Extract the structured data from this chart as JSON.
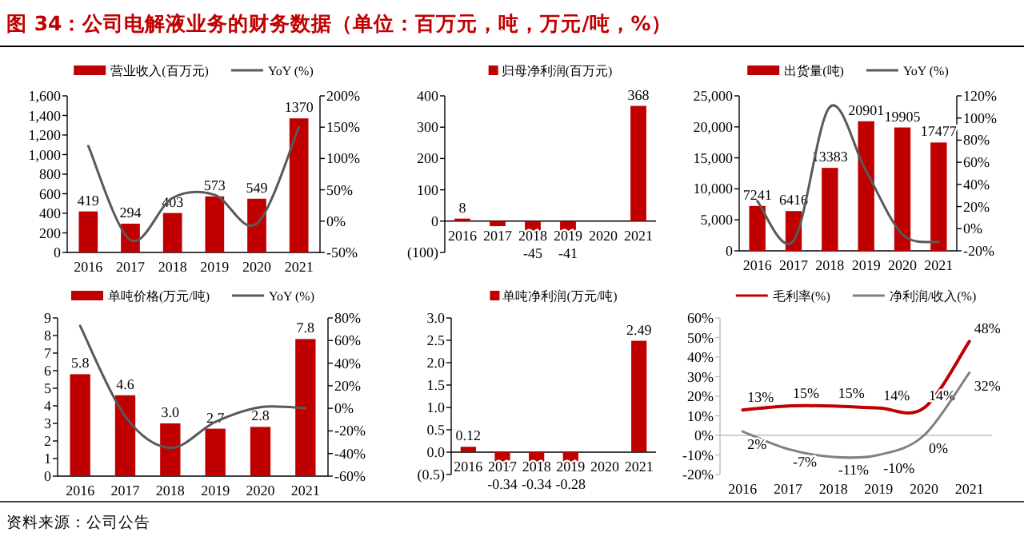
{
  "chart_data": [
    {
      "type": "bar",
      "title": "图 34：公司电解液业务的财务数据（单位：百万元，吨，万元/吨，%）",
      "annotations": [
        "资料来源：公司公告"
      ],
      "categories": [
        "2016",
        "2017",
        "2018",
        "2019",
        "2020",
        "2021"
      ],
      "legend": "top",
      "ylim": [
        0,
        1600
      ],
      "yticks": [
        0,
        200,
        400,
        600,
        800,
        {
          "value": 1000,
          "label": "1,000"
        },
        {
          "value": 1200,
          "label": "1,200"
        },
        {
          "value": 1400,
          "label": "1,400"
        },
        {
          "value": 1600,
          "label": "1,600"
        }
      ],
      "y2lim": [
        -50,
        200
      ],
      "y2ticks": [
        {
          "value": -50,
          "label": "-50%"
        },
        {
          "value": 0,
          "label": "0%"
        },
        {
          "value": 50,
          "label": "50%"
        },
        {
          "value": 100,
          "label": "100%"
        },
        {
          "value": 150,
          "label": "150%"
        },
        {
          "value": 200,
          "label": "200%"
        }
      ],
      "series": [
        {
          "name": "营业收入(百万元)",
          "type": "bar",
          "color": "#c00000",
          "values": [
            419,
            294,
            403,
            573,
            549,
            1370
          ],
          "value_labels": [
            "419",
            "294",
            "403",
            "573",
            "549",
            "1370"
          ]
        },
        {
          "name": "YoY (%)",
          "type": "line",
          "axis": "y2",
          "color": "#595959",
          "values": [
            120,
            -30,
            37,
            42,
            -4,
            150
          ]
        }
      ]
    },
    {
      "type": "bar",
      "categories": [
        "2016",
        "2017",
        "2018",
        "2019",
        "2020",
        "2021"
      ],
      "legend": "top",
      "ylim": [
        -100,
        400
      ],
      "yticks": [
        {
          "value": -100,
          "label": "(100)"
        },
        0,
        100,
        200,
        300,
        400
      ],
      "series": [
        {
          "name": "归母净利润(百万元)",
          "type": "bar",
          "color": "#c00000",
          "values": [
            8,
            -16,
            -45,
            -41,
            null,
            368
          ],
          "value_labels": [
            "8",
            null,
            "-45",
            "-41",
            null,
            "368"
          ]
        }
      ]
    },
    {
      "type": "bar",
      "categories": [
        "2016",
        "2017",
        "2018",
        "2019",
        "2020",
        "2021"
      ],
      "legend": "top",
      "ylim": [
        0,
        25000
      ],
      "yticks": [
        0,
        {
          "value": 5000,
          "label": "5,000"
        },
        {
          "value": 10000,
          "label": "10,000"
        },
        {
          "value": 15000,
          "label": "15,000"
        },
        {
          "value": 20000,
          "label": "20,000"
        },
        {
          "value": 25000,
          "label": "25,000"
        }
      ],
      "y2lim": [
        -20,
        120
      ],
      "y2ticks": [
        {
          "value": -20,
          "label": "-20%"
        },
        {
          "value": 0,
          "label": "0%"
        },
        {
          "value": 20,
          "label": "20%"
        },
        {
          "value": 40,
          "label": "40%"
        },
        {
          "value": 60,
          "label": "60%"
        },
        {
          "value": 80,
          "label": "80%"
        },
        {
          "value": 100,
          "label": "100%"
        },
        {
          "value": 120,
          "label": "120%"
        }
      ],
      "series": [
        {
          "name": "出货量(吨)",
          "type": "bar",
          "color": "#c00000",
          "values": [
            7241,
            6416,
            13383,
            20901,
            19905,
            17477
          ],
          "value_labels": [
            "7241",
            "6416",
            "13383",
            "20901",
            "19905",
            "17477"
          ]
        },
        {
          "name": "YoY (%)",
          "type": "line",
          "axis": "y2",
          "color": "#595959",
          "values": [
            25,
            -11,
            110,
            52,
            -5,
            -12
          ]
        }
      ]
    },
    {
      "type": "bar",
      "categories": [
        "2016",
        "2017",
        "2018",
        "2019",
        "2020",
        "2021"
      ],
      "legend": "top",
      "ylim": [
        0,
        9
      ],
      "yticks": [
        0,
        1,
        2,
        3,
        4,
        5,
        6,
        7,
        8,
        9
      ],
      "y2lim": [
        -60,
        80
      ],
      "y2ticks": [
        {
          "value": -60,
          "label": "-60%"
        },
        {
          "value": -40,
          "label": "-40%"
        },
        {
          "value": -20,
          "label": "-20%"
        },
        {
          "value": 0,
          "label": "0%"
        },
        {
          "value": 20,
          "label": "20%"
        },
        {
          "value": 40,
          "label": "40%"
        },
        {
          "value": 60,
          "label": "60%"
        },
        {
          "value": 80,
          "label": "80%"
        }
      ],
      "series": [
        {
          "name": "单吨价格(万元/吨)",
          "type": "bar",
          "color": "#c00000",
          "values": [
            5.8,
            4.6,
            3.0,
            2.7,
            2.8,
            7.8
          ],
          "value_labels": [
            "5.8",
            "4.6",
            "3.0",
            "2.7",
            "2.8",
            "7.8"
          ]
        },
        {
          "name": "YoY (%)",
          "type": "line",
          "axis": "y2",
          "color": "#595959",
          "values": [
            73,
            -7,
            -35,
            -12,
            1,
            0
          ]
        }
      ]
    },
    {
      "type": "bar",
      "categories": [
        "2016",
        "2017",
        "2018",
        "2019",
        "2020",
        "2021"
      ],
      "legend": "top",
      "ylim": [
        -0.5,
        3
      ],
      "yticks": [
        {
          "value": -0.5,
          "label": "(0.5)"
        },
        {
          "value": 0,
          "label": "0.0"
        },
        0.5,
        {
          "value": 1,
          "label": "1.0"
        },
        1.5,
        {
          "value": 2,
          "label": "2.0"
        },
        2.5,
        {
          "value": 3,
          "label": "3.0"
        }
      ],
      "series": [
        {
          "name": "单吨净利润(万元/吨)",
          "type": "bar",
          "color": "#c00000",
          "values": [
            0.12,
            -0.34,
            -0.34,
            -0.28,
            null,
            2.49
          ],
          "value_labels": [
            "0.12",
            "-0.34",
            "-0.34",
            "-0.28",
            null,
            "2.49"
          ]
        }
      ]
    },
    {
      "type": "line",
      "categories": [
        "2016",
        "2017",
        "2018",
        "2019",
        "2020",
        "2021"
      ],
      "legend": "top",
      "ylim": [
        -20,
        60
      ],
      "yticks": [
        {
          "value": -20,
          "label": "-20%"
        },
        {
          "value": -10,
          "label": "-10%"
        },
        {
          "value": 0,
          "label": "0%"
        },
        {
          "value": 10,
          "label": "10%"
        },
        {
          "value": 20,
          "label": "20%"
        },
        {
          "value": 30,
          "label": "30%"
        },
        {
          "value": 40,
          "label": "40%"
        },
        {
          "value": 50,
          "label": "50%"
        },
        {
          "value": 60,
          "label": "60%"
        }
      ],
      "series": [
        {
          "name": "毛利率(%)",
          "color": "#c00000",
          "values": [
            13,
            15,
            15,
            14,
            14,
            48
          ],
          "value_labels": [
            "13%",
            "15%",
            "15%",
            "14%",
            "14%",
            "48%"
          ]
        },
        {
          "name": "净利润/收入(%)",
          "color": "#808080",
          "values": [
            2,
            -7,
            -11,
            -10,
            0,
            32
          ],
          "value_labels": [
            "2%",
            "-7%",
            "-11%",
            "-10%",
            "0%",
            "32%"
          ]
        }
      ]
    }
  ]
}
